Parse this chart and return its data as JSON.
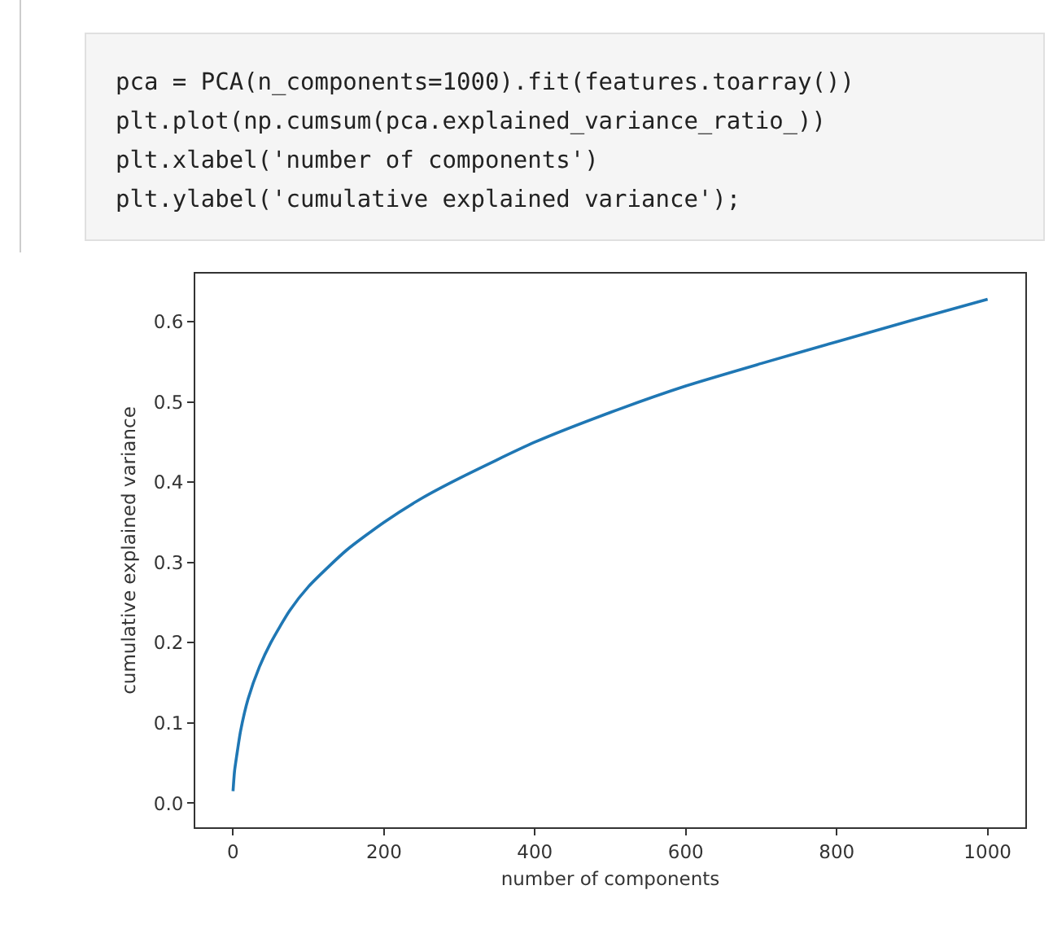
{
  "chart_data": {
    "type": "line",
    "xlabel": "number of components",
    "ylabel": "cumulative explained variance",
    "annotations": [
      "pca = PCA(n_components=1000).fit(features.toarray())",
      "plt.plot(np.cumsum(pca.explained_variance_ratio_))",
      "plt.xlabel('number of components')",
      "plt.ylabel('cumulative explained variance');"
    ],
    "x": [
      0,
      2,
      5,
      10,
      20,
      35,
      50,
      75,
      100,
      150,
      200,
      250,
      300,
      400,
      500,
      600,
      700,
      800,
      900,
      1000
    ],
    "series": [
      {
        "color": "#1f77b4",
        "values": [
          0.015,
          0.04,
          0.06,
          0.09,
          0.13,
          0.17,
          0.2,
          0.24,
          0.27,
          0.315,
          0.35,
          0.38,
          0.405,
          0.45,
          0.487,
          0.52,
          0.548,
          0.575,
          0.602,
          0.628
        ]
      }
    ],
    "xlim": [
      -50,
      1050
    ],
    "ylim": [
      -0.03,
      0.66
    ],
    "xticks": [
      0,
      200,
      400,
      600,
      800,
      1000
    ],
    "yticks": [
      {
        "value": 0,
        "label": "0.0"
      },
      0.1,
      0.2,
      0.3,
      0.4,
      0.5,
      0.6
    ],
    "marker": "none",
    "line_style": "solid"
  }
}
